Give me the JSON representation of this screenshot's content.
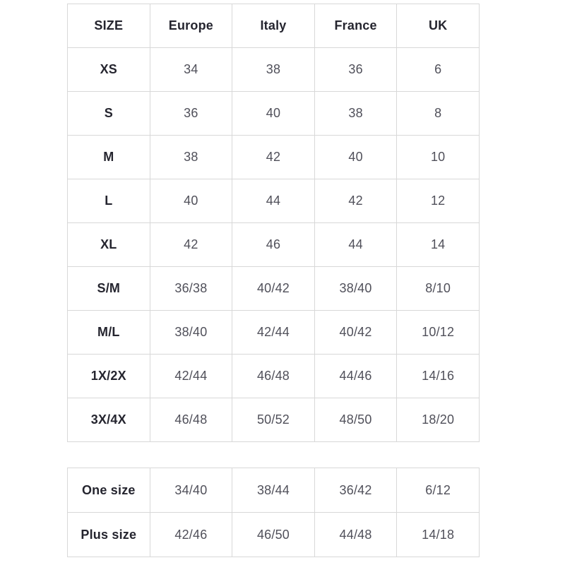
{
  "colors": {
    "background": "#ffffff",
    "border": "#d8d8d8",
    "header_text": "#25252f",
    "cell_text": "#50505a"
  },
  "size_table": {
    "columns": [
      "SIZE",
      "Europe",
      "Italy",
      "France",
      "UK"
    ],
    "rows": [
      {
        "size": "XS",
        "values": [
          "34",
          "38",
          "36",
          "6"
        ]
      },
      {
        "size": "S",
        "values": [
          "36",
          "40",
          "38",
          "8"
        ]
      },
      {
        "size": "M",
        "values": [
          "38",
          "42",
          "40",
          "10"
        ]
      },
      {
        "size": "L",
        "values": [
          "40",
          "44",
          "42",
          "12"
        ]
      },
      {
        "size": "XL",
        "values": [
          "42",
          "46",
          "44",
          "14"
        ]
      },
      {
        "size": "S/M",
        "values": [
          "36/38",
          "40/42",
          "38/40",
          "8/10"
        ]
      },
      {
        "size": "M/L",
        "values": [
          "38/40",
          "42/44",
          "40/42",
          "10/12"
        ]
      },
      {
        "size": "1X/2X",
        "values": [
          "42/44",
          "46/48",
          "44/46",
          "14/16"
        ]
      },
      {
        "size": "3X/4X",
        "values": [
          "46/48",
          "50/52",
          "48/50",
          "18/20"
        ]
      }
    ]
  },
  "extra_table": {
    "rows": [
      {
        "size": "One size",
        "values": [
          "34/40",
          "38/44",
          "36/42",
          "6/12"
        ]
      },
      {
        "size": "Plus size",
        "values": [
          "42/46",
          "46/50",
          "44/48",
          "14/18"
        ]
      }
    ]
  }
}
